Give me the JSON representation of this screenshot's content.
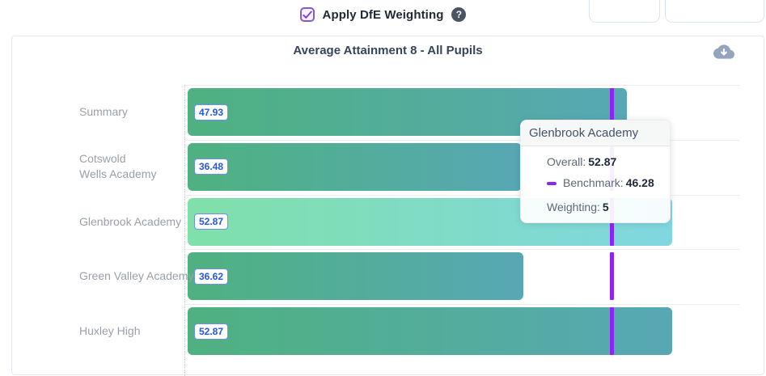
{
  "top_bar": {
    "checkbox_label": "Apply DfE Weighting",
    "checkbox_checked": true,
    "help_glyph": "?"
  },
  "card": {
    "title": "Average Attainment 8 - All Pupils",
    "download_icon": "cloud-download-icon"
  },
  "chart_data": {
    "type": "bar",
    "orientation": "horizontal",
    "title": "Average Attainment 8 - All Pupils",
    "categories": [
      "Summary",
      "Cotswold Wells Academy",
      "Glenbrook Academy",
      "Green Valley Academy",
      "Huxley High"
    ],
    "category_label_lines": [
      [
        "Summary"
      ],
      [
        "Cotswold",
        "Wells Academy"
      ],
      [
        "Glenbrook Academy"
      ],
      [
        "Green Valley Academy"
      ],
      [
        "Huxley High"
      ]
    ],
    "values": [
      47.93,
      36.48,
      52.87,
      36.62,
      52.87
    ],
    "value_labels": [
      "47.93",
      "36.48",
      "52.87",
      "36.62",
      "52.87"
    ],
    "benchmark": 46.28,
    "highlighted_index": 2,
    "highlighted_category": "Glenbrook Academy",
    "xlim": [
      0,
      60.5
    ],
    "grid": "row-separators",
    "legend": "none",
    "colors": {
      "bar_gradient_start": "#4fb180",
      "bar_gradient_end": "#57a8b4",
      "bar_highlight_gradient_start": "#80e0aa",
      "bar_highlight_gradient_end": "#80d7e0",
      "benchmark_line": "#8c25f2",
      "value_badge_text": "#2457e6",
      "category_label": "#9aa0a8"
    }
  },
  "tooltip": {
    "title": "Glenbrook Academy",
    "overall_label": "Overall:",
    "overall_value": "52.87",
    "benchmark_label": "Benchmark:",
    "benchmark_value": "46.28",
    "weighting_label": "Weighting:",
    "weighting_value": "5"
  }
}
